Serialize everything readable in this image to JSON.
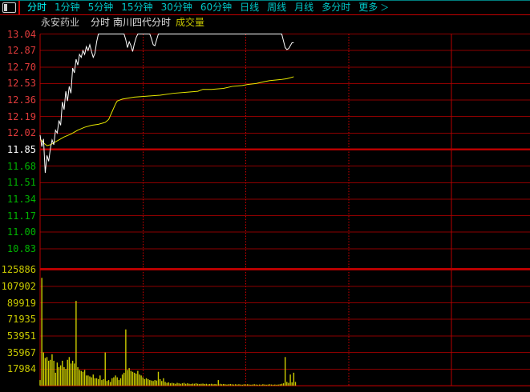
{
  "toolbar": {
    "tabs": [
      {
        "label": "分时",
        "selected": true
      },
      {
        "label": "1分钟",
        "selected": false
      },
      {
        "label": "5分钟",
        "selected": false
      },
      {
        "label": "15分钟",
        "selected": false
      },
      {
        "label": "30分钟",
        "selected": false
      },
      {
        "label": "60分钟",
        "selected": false
      },
      {
        "label": "日线",
        "selected": false
      },
      {
        "label": "周线",
        "selected": false
      },
      {
        "label": "月线",
        "selected": false
      },
      {
        "label": "多分时",
        "selected": false
      },
      {
        "label": "更多",
        "selected": false,
        "chevron": "＞"
      }
    ]
  },
  "subheader": {
    "stock_name": "永安药业",
    "period": "分时",
    "indicator": "南川四代分时",
    "volume_label": "成交量"
  },
  "price_axis": {
    "labels": [
      {
        "text": "13.04",
        "tone": "up"
      },
      {
        "text": "12.87",
        "tone": "up"
      },
      {
        "text": "12.70",
        "tone": "up"
      },
      {
        "text": "12.53",
        "tone": "up"
      },
      {
        "text": "12.36",
        "tone": "up"
      },
      {
        "text": "12.19",
        "tone": "up"
      },
      {
        "text": "12.02",
        "tone": "up"
      },
      {
        "text": "11.85",
        "tone": "flat"
      },
      {
        "text": "11.68",
        "tone": "down"
      },
      {
        "text": "11.51",
        "tone": "down"
      },
      {
        "text": "11.34",
        "tone": "down"
      },
      {
        "text": "11.17",
        "tone": "down"
      },
      {
        "text": "11.00",
        "tone": "down"
      },
      {
        "text": "10.83",
        "tone": "down"
      }
    ]
  },
  "volume_axis": {
    "labels": [
      "125886",
      "107902",
      "89919",
      "71935",
      "53951",
      "35967",
      "17984"
    ]
  },
  "colors": {
    "background": "#000000",
    "grid": "#8c0000",
    "grid_strong": "#b80000",
    "grid_dotted": "#d40000",
    "price_line": "#ffffff",
    "avg_line": "#e8e800",
    "volume_bar": "#cccc00",
    "tab": "#00c8c8",
    "tab_selected": "#00ffff",
    "label_up": "#e13b3b",
    "label_down": "#00b400",
    "label_flat": "#ffffff",
    "volume_text": "#c8c800"
  },
  "chart_data": {
    "type": "line",
    "title": "永安药业 分时 (intraday price / 均价 / 成交量)",
    "x_unit": "minute of trading session 9:30-15:00",
    "session_minutes": 240,
    "data_end_minute": 148,
    "x_gridlines_minutes": {
      "dotted": [
        60,
        120,
        180
      ],
      "solid": [
        240
      ]
    },
    "y_axis_price": {
      "max": 13.04,
      "min": 10.83,
      "tick_step": 0.17,
      "prev_close": 11.85
    },
    "y_axis_volume": {
      "max": 125886,
      "tick_step": 17984,
      "min": 0
    },
    "series": [
      {
        "name": "price",
        "color": "#ffffff",
        "points": [
          [
            0,
            12.0
          ],
          [
            1,
            11.88
          ],
          [
            2,
            11.96
          ],
          [
            3,
            11.61
          ],
          [
            4,
            11.79
          ],
          [
            5,
            11.73
          ],
          [
            6,
            11.86
          ],
          [
            7,
            11.95
          ],
          [
            8,
            11.9
          ],
          [
            9,
            12.05
          ],
          [
            10,
            12.02
          ],
          [
            11,
            12.15
          ],
          [
            12,
            12.1
          ],
          [
            13,
            12.34
          ],
          [
            14,
            12.26
          ],
          [
            15,
            12.45
          ],
          [
            16,
            12.35
          ],
          [
            17,
            12.5
          ],
          [
            18,
            12.43
          ],
          [
            19,
            12.69
          ],
          [
            20,
            12.64
          ],
          [
            21,
            12.78
          ],
          [
            22,
            12.72
          ],
          [
            23,
            12.83
          ],
          [
            24,
            12.8
          ],
          [
            25,
            12.87
          ],
          [
            26,
            12.83
          ],
          [
            27,
            12.91
          ],
          [
            28,
            12.87
          ],
          [
            29,
            12.93
          ],
          [
            30,
            12.86
          ],
          [
            31,
            12.8
          ],
          [
            32,
            12.84
          ],
          [
            33,
            12.96
          ],
          [
            34,
            13.04
          ],
          [
            49,
            13.04
          ],
          [
            50,
            12.98
          ],
          [
            51,
            12.9
          ],
          [
            52,
            12.96
          ],
          [
            53,
            12.92
          ],
          [
            54,
            12.86
          ],
          [
            55,
            12.94
          ],
          [
            56,
            13.0
          ],
          [
            57,
            13.04
          ],
          [
            64,
            13.04
          ],
          [
            65,
            12.99
          ],
          [
            66,
            12.93
          ],
          [
            67,
            12.92
          ],
          [
            68,
            12.98
          ],
          [
            69,
            13.04
          ],
          [
            141,
            13.04
          ],
          [
            142,
            12.97
          ],
          [
            143,
            12.9
          ],
          [
            144,
            12.88
          ],
          [
            145,
            12.89
          ],
          [
            146,
            12.92
          ],
          [
            147,
            12.95
          ],
          [
            148,
            12.95
          ]
        ]
      },
      {
        "name": "avg_price",
        "color": "#e8e800",
        "points": [
          [
            0,
            11.96
          ],
          [
            2,
            11.92
          ],
          [
            4,
            11.89
          ],
          [
            6,
            11.9
          ],
          [
            8,
            11.92
          ],
          [
            10,
            11.94
          ],
          [
            14,
            11.98
          ],
          [
            18,
            12.01
          ],
          [
            22,
            12.05
          ],
          [
            26,
            12.08
          ],
          [
            30,
            12.1
          ],
          [
            34,
            12.11
          ],
          [
            38,
            12.13
          ],
          [
            40,
            12.16
          ],
          [
            42,
            12.24
          ],
          [
            44,
            12.32
          ],
          [
            45,
            12.35
          ],
          [
            48,
            12.37
          ],
          [
            55,
            12.39
          ],
          [
            62,
            12.4
          ],
          [
            70,
            12.41
          ],
          [
            78,
            12.43
          ],
          [
            85,
            12.44
          ],
          [
            92,
            12.45
          ],
          [
            95,
            12.47
          ],
          [
            100,
            12.47
          ],
          [
            107,
            12.48
          ],
          [
            112,
            12.5
          ],
          [
            118,
            12.51
          ],
          [
            121,
            12.52
          ],
          [
            126,
            12.53
          ],
          [
            131,
            12.55
          ],
          [
            134,
            12.56
          ],
          [
            140,
            12.57
          ],
          [
            144,
            12.58
          ],
          [
            148,
            12.6
          ]
        ]
      }
    ],
    "volume": {
      "name": "成交量",
      "color": "#cccc00",
      "per_minute": [
        6000,
        117000,
        36000,
        30000,
        31000,
        27000,
        28000,
        34000,
        27000,
        14000,
        25000,
        20000,
        22000,
        27000,
        20000,
        18000,
        28000,
        31000,
        24000,
        27000,
        24000,
        92000,
        20000,
        17000,
        16000,
        15000,
        17000,
        11000,
        11000,
        10000,
        9000,
        12000,
        8000,
        8000,
        7000,
        11000,
        6000,
        7000,
        36000,
        5000,
        6000,
        4000,
        8000,
        9000,
        11000,
        9000,
        6000,
        8000,
        12000,
        14000,
        61000,
        17000,
        19000,
        16000,
        15000,
        14000,
        13000,
        16000,
        12000,
        11000,
        9000,
        7000,
        8000,
        7000,
        6000,
        5500,
        5000,
        6000,
        5500,
        15000,
        7000,
        5000,
        8000,
        4000,
        3000,
        3500,
        2500,
        3000,
        2500,
        2000,
        3000,
        2500,
        2000,
        2500,
        3000,
        2000,
        2500,
        2000,
        1800,
        2200,
        2000,
        2500,
        2000,
        1800,
        2000,
        2200,
        1800,
        2000,
        1500,
        1800,
        2000,
        1500,
        1800,
        1500,
        6000,
        2000,
        1500,
        1800,
        1500,
        1200,
        1500,
        1800,
        1500,
        1200,
        1500,
        1200,
        1500,
        1200,
        1000,
        1500,
        1200,
        1500,
        1200,
        1000,
        1200,
        1500,
        1200,
        1000,
        1200,
        1000,
        1500,
        1200,
        1000,
        1200,
        1500,
        1200,
        1000,
        1200,
        1000,
        1200,
        1500,
        2000,
        2500,
        31000,
        4000,
        3000,
        12000,
        3500,
        14000,
        4000
      ]
    }
  }
}
